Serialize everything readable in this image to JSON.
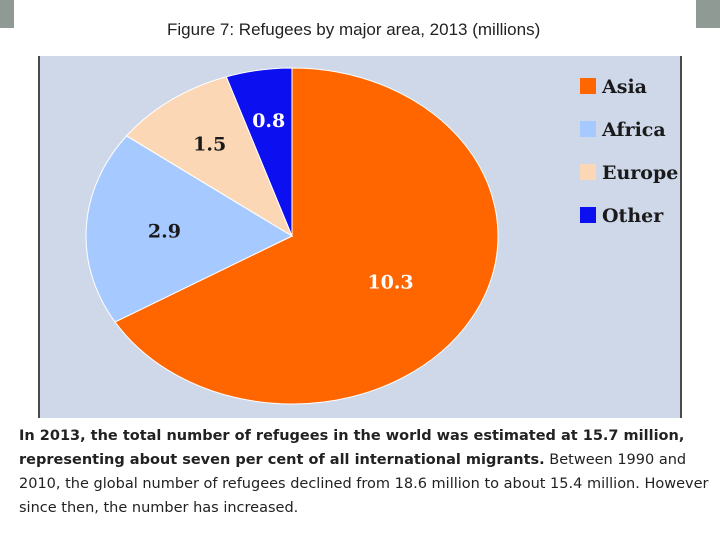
{
  "chart_data": {
    "type": "pie",
    "title": "Figure 7: Refugees by major area, 2013 (millions)",
    "categories": [
      "Asia",
      "Africa",
      "Europe",
      "Other"
    ],
    "values": [
      10.3,
      2.9,
      1.5,
      0.8
    ],
    "colors": [
      "#ff6600",
      "#a6caff",
      "#fbd7b5",
      "#0c0ff0"
    ],
    "data_labels": [
      "10.3",
      "2.9",
      "1.5",
      "0.8"
    ],
    "legend_position": "right"
  },
  "caption": {
    "bold_text": "In 2013, the total number of refugees in the world was estimated at 15.7 million, representing about seven per cent of all international migrants.",
    "normal_text": "Between 1990 and 2010, the global number of refugees declined from 18.6 million to about 15.4 million. However since then, the number has increased."
  }
}
